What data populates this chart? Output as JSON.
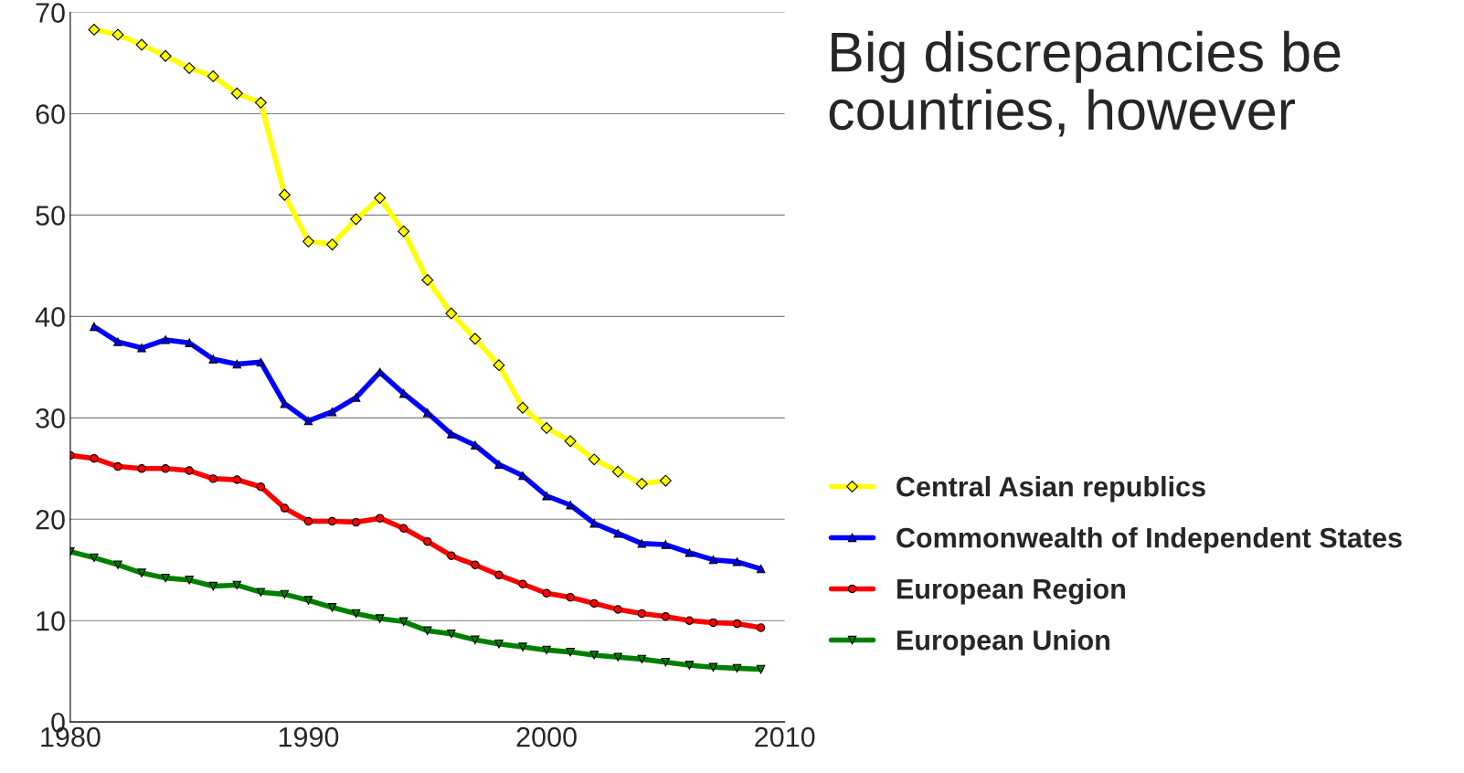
{
  "chart_data": {
    "type": "line",
    "title": "Big discrepancies be\ncountries, however",
    "xlim": [
      1980,
      2010
    ],
    "xticks": [
      1980,
      1990,
      2000,
      2010
    ],
    "ylim": [
      0,
      70
    ],
    "yticks": [
      0,
      10,
      20,
      30,
      40,
      50,
      60,
      70
    ],
    "grid": "y",
    "legend": "right",
    "line_style": "solid",
    "series": [
      {
        "name": "Central Asian republics",
        "color": "#ffff00",
        "marker": "diamond",
        "x": [
          1981,
          1982,
          1983,
          1984,
          1985,
          1986,
          1987,
          1988,
          1989,
          1990,
          1991,
          1992,
          1993,
          1994,
          1995,
          1996,
          1997,
          1998,
          1999,
          2000,
          2001,
          2002,
          2003,
          2004,
          2005
        ],
        "values": [
          68.3,
          67.8,
          66.8,
          65.7,
          64.5,
          63.7,
          62.0,
          61.1,
          52.0,
          47.4,
          47.1,
          49.6,
          51.7,
          48.4,
          43.6,
          40.3,
          37.8,
          35.2,
          31.0,
          29.0,
          27.7,
          25.9,
          24.7,
          23.5,
          23.8
        ]
      },
      {
        "name": "Commonwealth of Independent States",
        "color": "#0000ff",
        "marker": "triangle",
        "x": [
          1981,
          1982,
          1983,
          1984,
          1985,
          1986,
          1987,
          1988,
          1989,
          1990,
          1991,
          1992,
          1993,
          1994,
          1995,
          1996,
          1997,
          1998,
          1999,
          2000,
          2001,
          2002,
          2003,
          2004,
          2005,
          2006,
          2007,
          2008,
          2009
        ],
        "values": [
          39.0,
          37.5,
          36.9,
          37.7,
          37.4,
          35.8,
          35.3,
          35.5,
          31.4,
          29.7,
          30.6,
          32.0,
          34.5,
          32.4,
          30.5,
          28.4,
          27.3,
          25.4,
          24.3,
          22.3,
          21.4,
          19.6,
          18.6,
          17.6,
          17.5,
          16.7,
          16.0,
          15.8,
          15.1
        ]
      },
      {
        "name": "European Region",
        "color": "#ff0000",
        "marker": "circle",
        "x": [
          1980,
          1981,
          1982,
          1983,
          1984,
          1985,
          1986,
          1987,
          1988,
          1989,
          1990,
          1991,
          1992,
          1993,
          1994,
          1995,
          1996,
          1997,
          1998,
          1999,
          2000,
          2001,
          2002,
          2003,
          2004,
          2005,
          2006,
          2007,
          2008,
          2009
        ],
        "values": [
          26.3,
          26.0,
          25.2,
          25.0,
          25.0,
          24.8,
          24.0,
          23.9,
          23.2,
          21.1,
          19.8,
          19.8,
          19.7,
          20.1,
          19.1,
          17.8,
          16.4,
          15.5,
          14.5,
          13.6,
          12.7,
          12.3,
          11.7,
          11.1,
          10.7,
          10.4,
          10.0,
          9.8,
          9.7,
          9.3
        ]
      },
      {
        "name": "European Union",
        "color": "#008000",
        "marker": "triangle_down",
        "x": [
          1980,
          1981,
          1982,
          1983,
          1984,
          1985,
          1986,
          1987,
          1988,
          1989,
          1990,
          1991,
          1992,
          1993,
          1994,
          1995,
          1996,
          1997,
          1998,
          1999,
          2000,
          2001,
          2002,
          2003,
          2004,
          2005,
          2006,
          2007,
          2008,
          2009
        ],
        "values": [
          16.8,
          16.2,
          15.5,
          14.7,
          14.2,
          14.0,
          13.4,
          13.5,
          12.8,
          12.6,
          12.0,
          11.3,
          10.7,
          10.2,
          9.9,
          9.0,
          8.7,
          8.1,
          7.7,
          7.4,
          7.1,
          6.9,
          6.6,
          6.4,
          6.2,
          5.9,
          5.6,
          5.4,
          5.3,
          5.2
        ]
      }
    ]
  }
}
